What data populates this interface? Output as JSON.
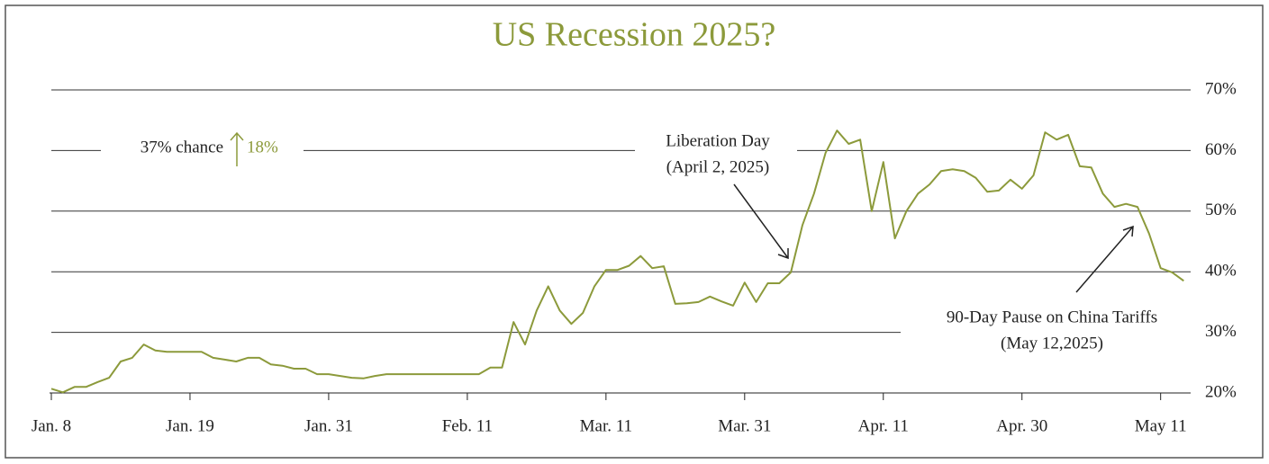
{
  "chart_data": {
    "type": "line",
    "title": "US Recession 2025?",
    "categories": [
      "Jan. 8",
      null,
      null,
      null,
      null,
      null,
      null,
      null,
      null,
      null,
      null,
      null,
      "Jan. 19",
      null,
      null,
      null,
      null,
      null,
      null,
      null,
      null,
      null,
      null,
      null,
      "Jan. 31",
      null,
      null,
      null,
      null,
      null,
      null,
      null,
      null,
      null,
      null,
      null,
      "Feb. 11",
      null,
      null,
      null,
      null,
      null,
      null,
      null,
      null,
      null,
      null,
      null,
      "Mar. 11",
      null,
      null,
      null,
      null,
      null,
      null,
      null,
      null,
      null,
      null,
      null,
      "Mar. 31",
      null,
      null,
      null,
      null,
      null,
      null,
      null,
      null,
      null,
      null,
      null,
      "Apr. 11",
      null,
      null,
      null,
      null,
      null,
      null,
      null,
      null,
      null,
      null,
      null,
      "Apr. 30",
      null,
      null,
      null,
      null,
      null,
      null,
      null,
      null,
      null,
      null,
      null,
      "May 11",
      null,
      null
    ],
    "values": [
      20.7,
      20.1,
      21,
      21,
      21.8,
      22.5,
      25.2,
      25.8,
      28,
      27,
      26.8,
      26.8,
      26.8,
      26.8,
      25.8,
      25.5,
      25.2,
      25.8,
      25.8,
      24.7,
      24.5,
      24,
      24,
      23.1,
      23.1,
      22.8,
      22.5,
      22.4,
      22.8,
      23.1,
      23.1,
      23.1,
      23.1,
      23.1,
      23.1,
      23.1,
      23.1,
      23.1,
      24.2,
      24.2,
      31.7,
      28,
      33.6,
      37.6,
      33.6,
      31.4,
      33.2,
      37.6,
      40.3,
      40.3,
      41,
      42.6,
      40.6,
      40.9,
      34.7,
      34.8,
      35,
      35.9,
      35.1,
      34.4,
      38.2,
      35,
      38.1,
      38.1,
      39.9,
      47.7,
      52.9,
      59.6,
      63.3,
      61.1,
      61.8,
      50,
      58.1,
      45.5,
      50,
      52.9,
      54.4,
      56.6,
      56.9,
      56.6,
      55.5,
      53.2,
      53.4,
      55.2,
      53.7,
      55.9,
      63,
      61.8,
      62.6,
      57.4,
      57.2,
      52.9,
      50.7,
      51.2,
      50.7,
      46.3,
      40.6,
      39.9,
      38.5
    ],
    "color": "#8c9a3b",
    "ylim": [
      20,
      70
    ],
    "yticks": [
      {
        "value": 20,
        "label": "20%"
      },
      {
        "value": 30,
        "label": "30%"
      },
      {
        "value": 40,
        "label": "40%"
      },
      {
        "value": 50,
        "label": "50%"
      },
      {
        "value": 60,
        "label": "60%"
      },
      {
        "value": 70,
        "label": "70%"
      }
    ],
    "grid": true,
    "annotations": [
      "37% chance",
      "18%",
      "Liberation Day",
      "(April 2, 2025)",
      "90-Day Pause on China Tariffs",
      "(May 12,2025)"
    ]
  }
}
